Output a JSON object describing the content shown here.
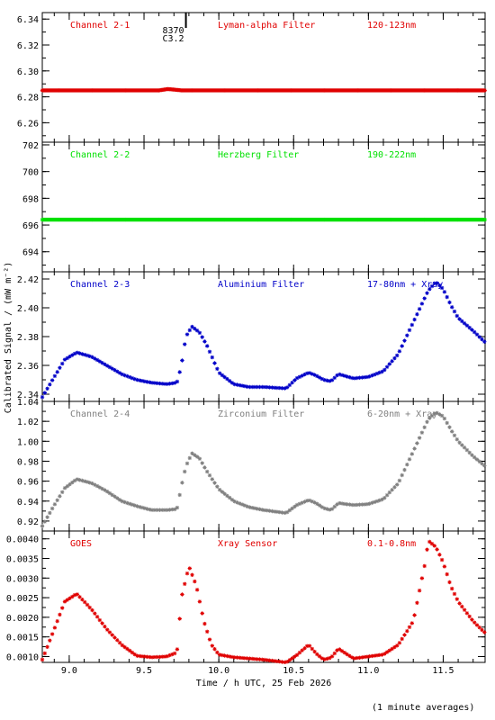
{
  "chart_data": {
    "type": "scatter",
    "xlabel": "Time / h UTC, 25 Feb 2026",
    "ylabel": "Calibrated Signal / (mW m⁻²)",
    "x_range": [
      8.82,
      11.78
    ],
    "x_ticks": [
      "9.0",
      "9.5",
      "10.0",
      "10.5",
      "11.0",
      "11.5"
    ],
    "marker": "asterisk",
    "annotation": {
      "x": 9.78,
      "lines": [
        "8370",
        "C3.2"
      ]
    },
    "panels": [
      {
        "channel": "Channel 2-1",
        "filter": "Lyman-alpha Filter",
        "band": "120-123nm",
        "color": "#e00000",
        "ylim": [
          6.245,
          6.345
        ],
        "y_ticks": [
          "6.26",
          "6.28",
          "6.30",
          "6.32",
          "6.34"
        ],
        "series": {
          "x": [
            8.82,
            9.2,
            9.5,
            9.6,
            9.66,
            9.75,
            9.85,
            10.0,
            10.5,
            11.0,
            11.78
          ],
          "y": [
            6.285,
            6.285,
            6.285,
            6.285,
            6.286,
            6.285,
            6.285,
            6.285,
            6.285,
            6.285,
            6.285
          ]
        }
      },
      {
        "channel": "Channel 2-2",
        "filter": "Herzberg Filter",
        "band": "190-222nm",
        "color": "#00e000",
        "ylim": [
          692.5,
          702.2
        ],
        "y_ticks": [
          "694",
          "696",
          "698",
          "700",
          "702"
        ],
        "series": {
          "x": [
            8.82,
            9.5,
            10.0,
            10.5,
            11.0,
            11.78
          ],
          "y": [
            696.4,
            696.4,
            696.4,
            696.4,
            696.4,
            696.4
          ]
        }
      },
      {
        "channel": "Channel 2-3",
        "filter": "Aluminium Filter",
        "band": "17-80nm + Xray",
        "color": "#0000c8",
        "ylim": [
          2.335,
          2.425
        ],
        "y_ticks": [
          "2.34",
          "2.36",
          "2.38",
          "2.40",
          "2.42"
        ],
        "series": {
          "x": [
            8.82,
            8.9,
            8.97,
            9.05,
            9.15,
            9.25,
            9.35,
            9.45,
            9.55,
            9.65,
            9.72,
            9.75,
            9.78,
            9.82,
            9.87,
            9.92,
            10.0,
            10.1,
            10.2,
            10.3,
            10.45,
            10.52,
            10.6,
            10.65,
            10.7,
            10.75,
            10.8,
            10.9,
            11.0,
            11.1,
            11.2,
            11.3,
            11.4,
            11.45,
            11.5,
            11.55,
            11.6,
            11.7,
            11.78
          ],
          "y": [
            2.338,
            2.352,
            2.364,
            2.369,
            2.366,
            2.36,
            2.354,
            2.35,
            2.348,
            2.347,
            2.348,
            2.36,
            2.38,
            2.387,
            2.383,
            2.374,
            2.355,
            2.347,
            2.345,
            2.345,
            2.344,
            2.351,
            2.355,
            2.353,
            2.35,
            2.349,
            2.354,
            2.351,
            2.352,
            2.356,
            2.368,
            2.39,
            2.412,
            2.418,
            2.413,
            2.402,
            2.393,
            2.384,
            2.376
          ]
        }
      },
      {
        "channel": "Channel 2-4",
        "filter": "Zirconium Filter",
        "band": "6-20nm + Xray",
        "color": "#808080",
        "ylim": [
          0.91,
          1.04
        ],
        "y_ticks": [
          "0.92",
          "0.94",
          "0.96",
          "0.98",
          "1.00",
          "1.02",
          "1.04"
        ],
        "series": {
          "x": [
            8.82,
            8.9,
            8.97,
            9.05,
            9.15,
            9.25,
            9.35,
            9.45,
            9.55,
            9.65,
            9.72,
            9.75,
            9.78,
            9.82,
            9.87,
            9.92,
            10.0,
            10.1,
            10.2,
            10.3,
            10.45,
            10.52,
            10.6,
            10.65,
            10.7,
            10.75,
            10.8,
            10.9,
            11.0,
            11.1,
            11.2,
            11.3,
            11.4,
            11.45,
            11.5,
            11.55,
            11.6,
            11.7,
            11.78
          ],
          "y": [
            0.915,
            0.936,
            0.953,
            0.962,
            0.958,
            0.95,
            0.94,
            0.935,
            0.931,
            0.931,
            0.932,
            0.955,
            0.975,
            0.988,
            0.983,
            0.97,
            0.952,
            0.94,
            0.934,
            0.931,
            0.928,
            0.936,
            0.941,
            0.938,
            0.933,
            0.931,
            0.938,
            0.936,
            0.937,
            0.942,
            0.958,
            0.99,
            1.022,
            1.029,
            1.025,
            1.012,
            1.0,
            0.985,
            0.975
          ]
        }
      },
      {
        "channel": "GOES",
        "filter": "Xray Sensor",
        "band": "0.1-0.8nm",
        "color": "#e00000",
        "ylim": [
          0.00085,
          0.0042
        ],
        "y_ticks": [
          "0.0010",
          "0.0015",
          "0.0020",
          "0.0025",
          "0.0030",
          "0.0035",
          "0.0040"
        ],
        "series": {
          "x": [
            8.82,
            8.9,
            8.97,
            9.05,
            9.15,
            9.25,
            9.35,
            9.45,
            9.55,
            9.65,
            9.72,
            9.75,
            9.8,
            9.85,
            9.9,
            9.95,
            10.0,
            10.1,
            10.2,
            10.3,
            10.45,
            10.52,
            10.6,
            10.65,
            10.7,
            10.75,
            10.8,
            10.9,
            11.0,
            11.1,
            11.2,
            11.3,
            11.38,
            11.4,
            11.45,
            11.5,
            11.55,
            11.6,
            11.7,
            11.78
          ],
          "y": [
            0.00092,
            0.0017,
            0.0024,
            0.0026,
            0.0022,
            0.0017,
            0.0013,
            0.00102,
            0.00098,
            0.001,
            0.0011,
            0.0025,
            0.0033,
            0.0028,
            0.0019,
            0.0013,
            0.00105,
            0.00098,
            0.00095,
            0.00092,
            0.00085,
            0.00103,
            0.0013,
            0.00108,
            0.00092,
            0.00097,
            0.0012,
            0.00095,
            0.001,
            0.00105,
            0.0013,
            0.0019,
            0.0034,
            0.00395,
            0.0038,
            0.0034,
            0.0028,
            0.0024,
            0.0019,
            0.0016
          ]
        }
      }
    ]
  },
  "footer": {
    "note": "(1 minute averages)"
  }
}
